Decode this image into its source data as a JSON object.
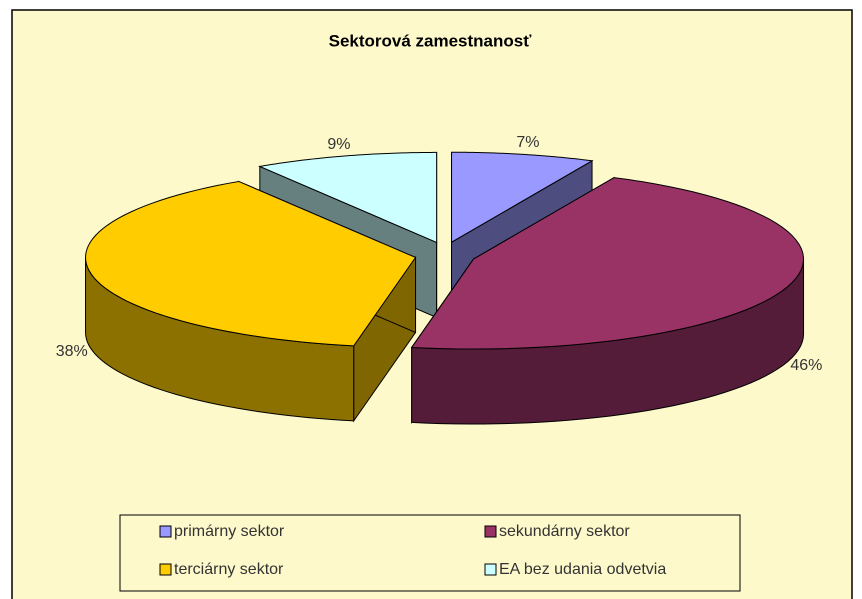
{
  "chart_data": {
    "type": "pie3d",
    "title": "Sektorová zamestnanosť",
    "categories": [
      "primárny sektor",
      "sekundárny sektor",
      "terciárny sektor",
      "EA bez udania odvetvia"
    ],
    "values": [
      7,
      46,
      38,
      9
    ],
    "value_labels": [
      "7%",
      "46%",
      "38%",
      "9%"
    ],
    "colors": [
      "#9999ff",
      "#993366",
      "#ffcc00",
      "#ccffff"
    ],
    "legend": "bottom"
  }
}
